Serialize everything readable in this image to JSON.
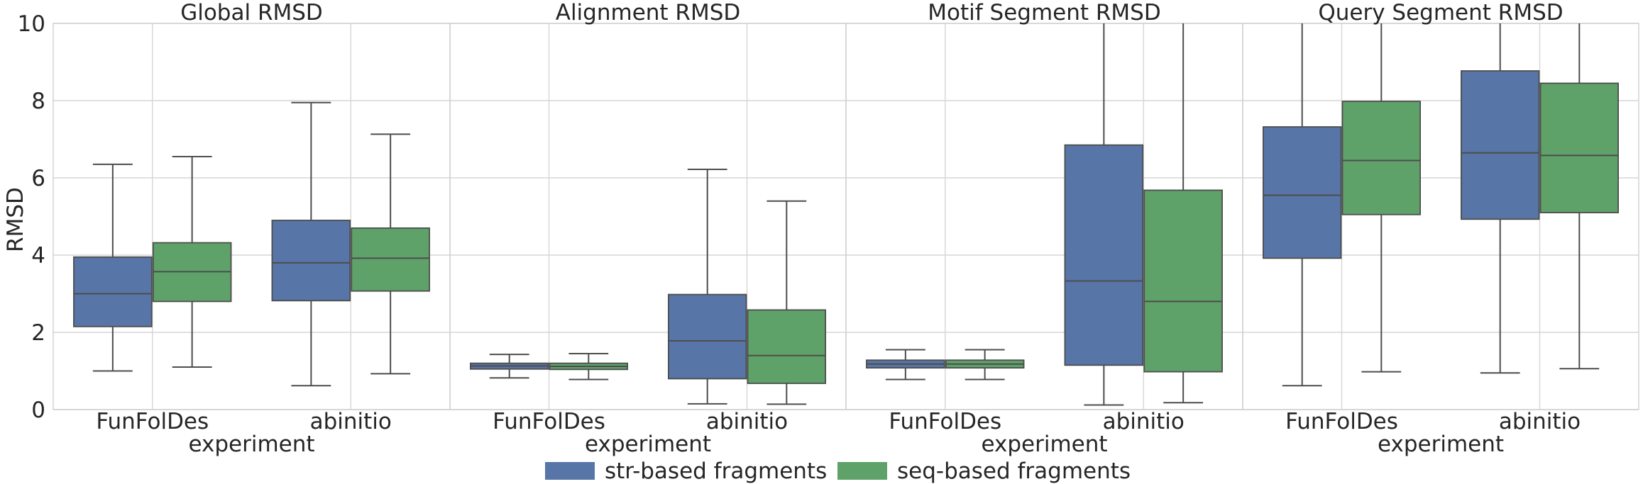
{
  "chart_data": {
    "type": "box",
    "ylabel": "RMSD",
    "ylim": [
      0,
      10
    ],
    "yticks": [
      0,
      2,
      4,
      6,
      8,
      10
    ],
    "grid": true,
    "shared_y": true,
    "legend": {
      "placement": "bottom-center",
      "entries": [
        {
          "name": "str-based fragments",
          "color": "#5875a7"
        },
        {
          "name": "seq-based fragments",
          "color": "#5ea26a"
        }
      ]
    },
    "panels": [
      {
        "title": "Global RMSD",
        "xlabel": "experiment",
        "categories": [
          "FunFolDes",
          "abinitio"
        ],
        "series": [
          {
            "name": "str-based fragments",
            "boxes": [
              {
                "whislo": 1.0,
                "q1": 2.15,
                "med": 3.0,
                "q3": 3.95,
                "whishi": 6.35
              },
              {
                "whislo": 0.62,
                "q1": 2.82,
                "med": 3.8,
                "q3": 4.9,
                "whishi": 7.95
              }
            ]
          },
          {
            "name": "seq-based fragments",
            "boxes": [
              {
                "whislo": 1.1,
                "q1": 2.8,
                "med": 3.57,
                "q3": 4.32,
                "whishi": 6.55
              },
              {
                "whislo": 0.93,
                "q1": 3.07,
                "med": 3.92,
                "q3": 4.7,
                "whishi": 7.13
              }
            ]
          }
        ]
      },
      {
        "title": "Alignment RMSD",
        "xlabel": "experiment",
        "categories": [
          "FunFolDes",
          "abinitio"
        ],
        "series": [
          {
            "name": "str-based fragments",
            "boxes": [
              {
                "whislo": 0.82,
                "q1": 1.05,
                "med": 1.13,
                "q3": 1.2,
                "whishi": 1.43
              },
              {
                "whislo": 0.15,
                "q1": 0.8,
                "med": 1.78,
                "q3": 2.98,
                "whishi": 6.22
              }
            ]
          },
          {
            "name": "seq-based fragments",
            "boxes": [
              {
                "whislo": 0.78,
                "q1": 1.04,
                "med": 1.12,
                "q3": 1.2,
                "whishi": 1.45
              },
              {
                "whislo": 0.14,
                "q1": 0.68,
                "med": 1.4,
                "q3": 2.58,
                "whishi": 5.4
              }
            ]
          }
        ]
      },
      {
        "title": "Motif Segment RMSD",
        "xlabel": "experiment",
        "categories": [
          "FunFolDes",
          "abinitio"
        ],
        "series": [
          {
            "name": "str-based fragments",
            "boxes": [
              {
                "whislo": 0.78,
                "q1": 1.08,
                "med": 1.18,
                "q3": 1.28,
                "whishi": 1.55
              },
              {
                "whislo": 0.12,
                "q1": 1.15,
                "med": 3.33,
                "q3": 6.85,
                "whishi": 10.0
              }
            ]
          },
          {
            "name": "seq-based fragments",
            "boxes": [
              {
                "whislo": 0.78,
                "q1": 1.08,
                "med": 1.18,
                "q3": 1.28,
                "whishi": 1.55
              },
              {
                "whislo": 0.18,
                "q1": 0.98,
                "med": 2.8,
                "q3": 5.68,
                "whishi": 10.0
              }
            ]
          }
        ]
      },
      {
        "title": "Query Segment RMSD",
        "xlabel": "experiment",
        "categories": [
          "FunFolDes",
          "abinitio"
        ],
        "series": [
          {
            "name": "str-based fragments",
            "boxes": [
              {
                "whislo": 0.62,
                "q1": 3.92,
                "med": 5.55,
                "q3": 7.32,
                "whishi": 10.0
              },
              {
                "whislo": 0.95,
                "q1": 4.93,
                "med": 6.65,
                "q3": 8.77,
                "whishi": 10.0
              }
            ]
          },
          {
            "name": "seq-based fragments",
            "boxes": [
              {
                "whislo": 0.98,
                "q1": 5.05,
                "med": 6.45,
                "q3": 7.98,
                "whishi": 10.0
              },
              {
                "whislo": 1.06,
                "q1": 5.1,
                "med": 6.58,
                "q3": 8.45,
                "whishi": 10.0
              }
            ]
          }
        ]
      }
    ]
  }
}
